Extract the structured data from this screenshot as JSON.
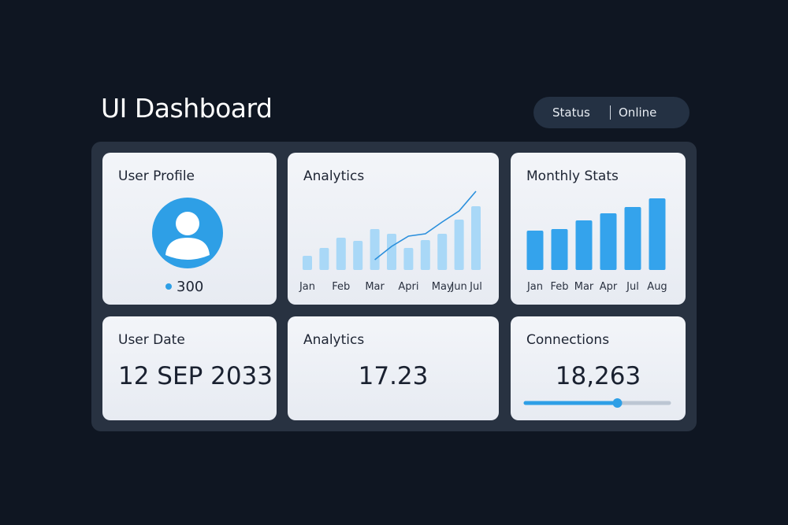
{
  "header": {
    "title": "UI Dashboard",
    "status_label": "Status",
    "status_value": "Online"
  },
  "profile": {
    "title": "User Profile",
    "count": "300"
  },
  "analytics_chart": {
    "type": "bar",
    "title": "Analytics",
    "categories": [
      "Jan",
      null,
      "Feb",
      null,
      "Mar",
      null,
      "Apri",
      null,
      "May",
      "Jun",
      "Jul"
    ],
    "series": [
      {
        "type": "bar",
        "color": "#a9d8f7",
        "values": [
          18,
          28,
          41,
          37,
          52,
          46,
          28,
          38,
          46,
          64,
          81
        ]
      },
      {
        "type": "line",
        "color": "#2a8fdc",
        "values": [
          null,
          null,
          null,
          null,
          13,
          30,
          43,
          46,
          61,
          75,
          100
        ]
      }
    ],
    "ylim": [
      0,
      100
    ]
  },
  "monthly_chart": {
    "type": "bar",
    "title": "Monthly Stats",
    "categories": [
      "Jan",
      "Feb",
      "Mar",
      "Apr",
      "Jul",
      "Aug"
    ],
    "values": [
      50,
      52,
      63,
      72,
      80,
      91
    ],
    "color": "#34a3ec",
    "ylim": [
      0,
      100
    ]
  },
  "user_date": {
    "title": "User Date",
    "value": "12 SEP 2033"
  },
  "analytics_value": {
    "title": "Analytics",
    "value": "17.23"
  },
  "connections": {
    "title": "Connections",
    "value": "18,263",
    "progress": 64,
    "progress_range": [
      0,
      100
    ]
  }
}
